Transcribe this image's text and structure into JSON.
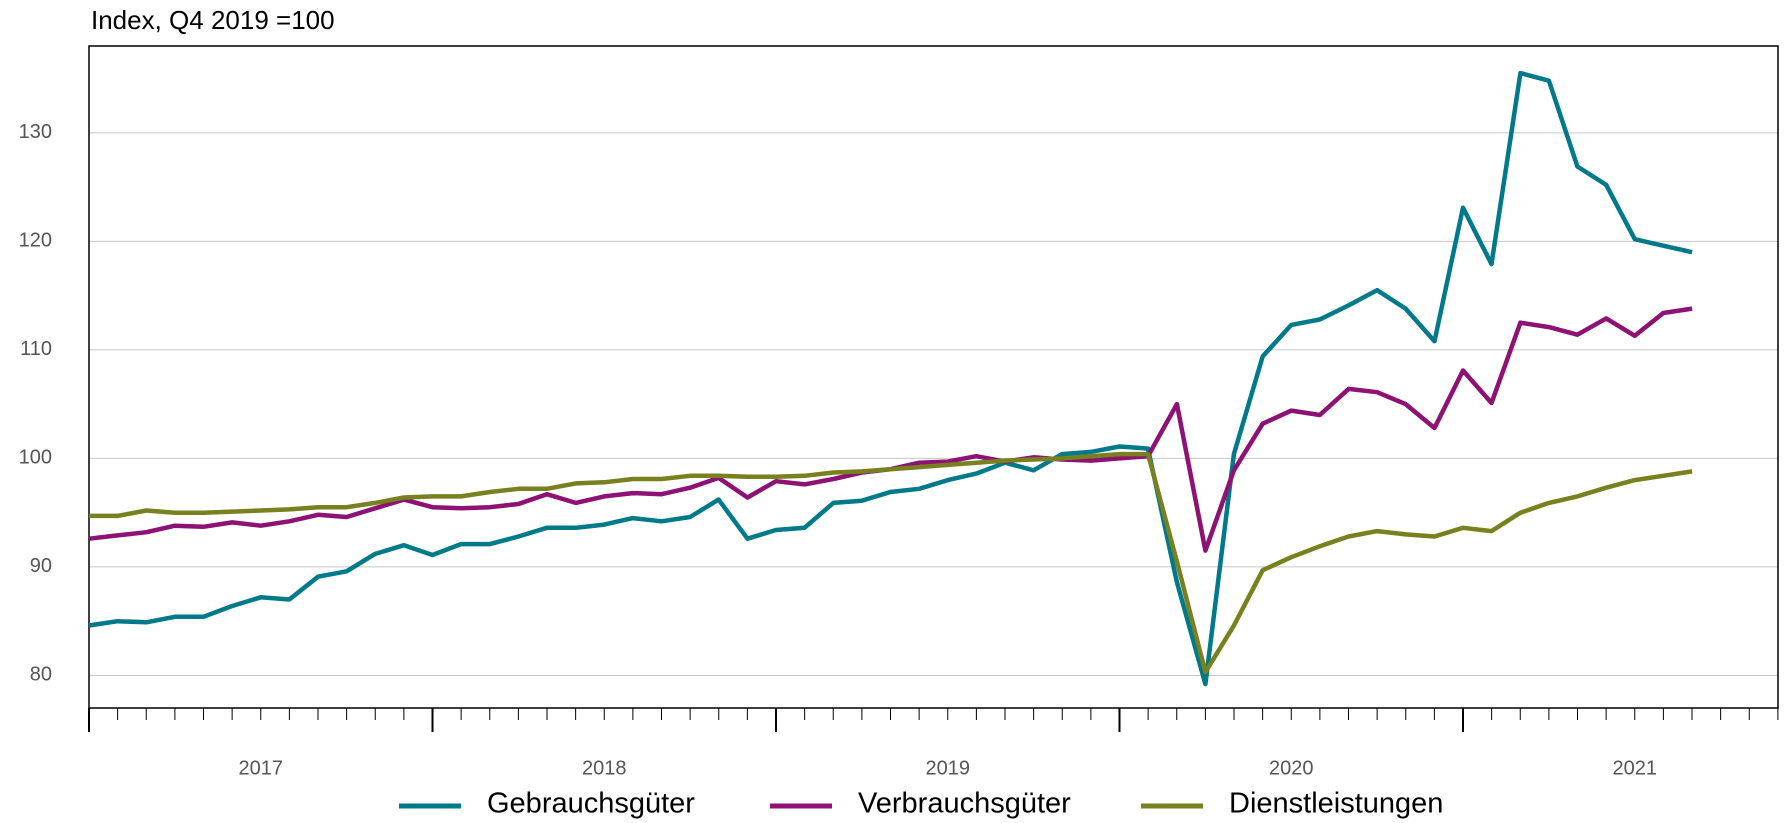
{
  "chart_data": {
    "type": "line",
    "title": "Index, Q4 2019 =100",
    "x": [
      2017,
      2017.083,
      2017.167,
      2017.25,
      2017.333,
      2017.417,
      2017.5,
      2017.583,
      2017.667,
      2017.75,
      2017.833,
      2017.917,
      2018,
      2018.083,
      2018.167,
      2018.25,
      2018.333,
      2018.417,
      2018.5,
      2018.583,
      2018.667,
      2018.75,
      2018.833,
      2018.917,
      2019,
      2019.083,
      2019.167,
      2019.25,
      2019.333,
      2019.417,
      2019.5,
      2019.583,
      2019.667,
      2019.75,
      2019.833,
      2019.917,
      2020,
      2020.083,
      2020.167,
      2020.25,
      2020.333,
      2020.417,
      2020.5,
      2020.583,
      2020.667,
      2020.75,
      2020.833,
      2020.917,
      2021,
      2021.083,
      2021.167,
      2021.25,
      2021.333,
      2021.417,
      2021.5,
      2021.583,
      2021.667
    ],
    "series": [
      {
        "name": "Gebrauchsgüter",
        "color": "#007a8a",
        "values": [
          84.6,
          85.0,
          84.9,
          85.4,
          85.4,
          86.4,
          87.2,
          87.0,
          89.1,
          89.6,
          91.2,
          92.0,
          91.1,
          92.1,
          92.1,
          92.8,
          93.6,
          93.6,
          93.9,
          94.5,
          94.2,
          94.6,
          96.2,
          92.6,
          93.4,
          93.6,
          95.9,
          96.1,
          96.9,
          97.2,
          98.0,
          98.6,
          99.6,
          98.9,
          100.4,
          100.6,
          101.1,
          100.9,
          88.6,
          79.2,
          100.4,
          109.4,
          112.3,
          112.8,
          114.1,
          115.5,
          113.8,
          110.8,
          123.1,
          117.9,
          135.5,
          134.8,
          126.9,
          125.2,
          120.2,
          119.6,
          119.0
        ]
      },
      {
        "name": "Verbrauchsgüter",
        "color": "#8e1174",
        "values": [
          92.6,
          92.9,
          93.2,
          93.8,
          93.7,
          94.1,
          93.8,
          94.2,
          94.8,
          94.6,
          95.4,
          96.2,
          95.5,
          95.4,
          95.5,
          95.8,
          96.7,
          95.9,
          96.5,
          96.8,
          96.7,
          97.3,
          98.2,
          96.4,
          97.9,
          97.6,
          98.1,
          98.7,
          99.0,
          99.6,
          99.7,
          100.2,
          99.7,
          100.1,
          99.9,
          99.8,
          100.0,
          100.2,
          105.0,
          91.5,
          98.9,
          103.2,
          104.4,
          104.0,
          106.4,
          106.1,
          105.0,
          102.8,
          108.1,
          105.1,
          112.5,
          112.1,
          111.4,
          112.9,
          111.3,
          113.4,
          113.8
        ]
      },
      {
        "name": "Dienstleistungen",
        "color": "#78801f",
        "values": [
          94.7,
          94.7,
          95.2,
          95.0,
          95.0,
          95.1,
          95.2,
          95.3,
          95.5,
          95.5,
          95.9,
          96.4,
          96.5,
          96.5,
          96.9,
          97.2,
          97.2,
          97.7,
          97.8,
          98.1,
          98.1,
          98.4,
          98.4,
          98.3,
          98.3,
          98.4,
          98.7,
          98.8,
          99.0,
          99.2,
          99.4,
          99.6,
          99.8,
          99.9,
          100.0,
          100.2,
          100.4,
          100.4,
          90.5,
          80.3,
          84.6,
          89.7,
          90.9,
          91.9,
          92.8,
          93.3,
          93.0,
          92.8,
          93.6,
          93.3,
          95.0,
          95.9,
          96.5,
          97.3,
          98.0,
          98.4,
          98.8
        ]
      }
    ],
    "xlim": [
      2017,
      2021.917
    ],
    "xticks": [
      {
        "value": 2017.5,
        "label": "2017"
      },
      {
        "value": 2018.5,
        "label": "2018"
      },
      {
        "value": 2019.5,
        "label": "2019"
      },
      {
        "value": 2020.5,
        "label": "2020"
      },
      {
        "value": 2021.5,
        "label": "2021"
      }
    ],
    "ylim": [
      77,
      138
    ],
    "yticks": [
      80,
      90,
      100,
      110,
      120,
      130
    ],
    "grid": true
  }
}
